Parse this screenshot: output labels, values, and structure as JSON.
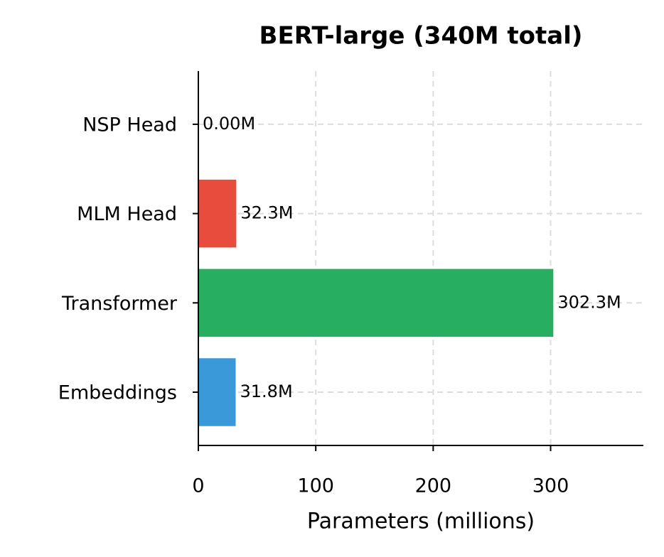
{
  "chart_data": {
    "type": "barh",
    "title": "BERT-large (340M total)",
    "x_label": "Parameters (millions)",
    "categories": [
      "Embeddings",
      "Transformer",
      "MLM Head",
      "NSP Head"
    ],
    "values": [
      31.8,
      302.3,
      32.3,
      0
    ],
    "value_labels": [
      "31.8M",
      "302.3M",
      "32.3M",
      "0.00M"
    ],
    "colors": [
      "#3a9ad9",
      "#27ae60",
      "#e74c3c",
      "#9b59b6"
    ],
    "xlim": [
      0,
      379
    ],
    "xticks": [
      0,
      100,
      200,
      300
    ],
    "grid": true
  }
}
